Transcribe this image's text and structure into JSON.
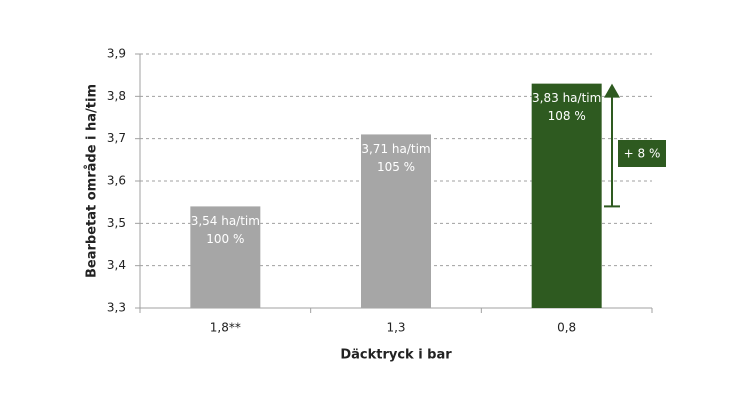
{
  "chart_data": {
    "type": "bar",
    "categories": [
      "1,8**",
      "1,3",
      "0,8"
    ],
    "values": [
      3.54,
      3.71,
      3.83
    ],
    "value_labels": [
      "3,54 ha/tim",
      "3,71 ha/tim",
      "3,83 ha/tim"
    ],
    "relative_labels": [
      "100 %",
      "105 %",
      "108 %"
    ],
    "colors": [
      "#a6a6a6",
      "#a6a6a6",
      "#2e5a20"
    ],
    "ylim": [
      3.3,
      3.9
    ],
    "yticks": [
      {
        "value": 3.3,
        "label": "3,3"
      },
      {
        "value": 3.4,
        "label": "3,4"
      },
      {
        "value": 3.5,
        "label": "3,5"
      },
      {
        "value": 3.6,
        "label": "3,6"
      },
      {
        "value": 3.7,
        "label": "3,7"
      },
      {
        "value": 3.8,
        "label": "3,8"
      },
      {
        "value": 3.9,
        "label": "3,9"
      }
    ],
    "grid": true,
    "xlabel": "Däcktryck i bar",
    "ylabel": "Bearbetat område i ha/tim",
    "annotation": "+ 8 %"
  }
}
